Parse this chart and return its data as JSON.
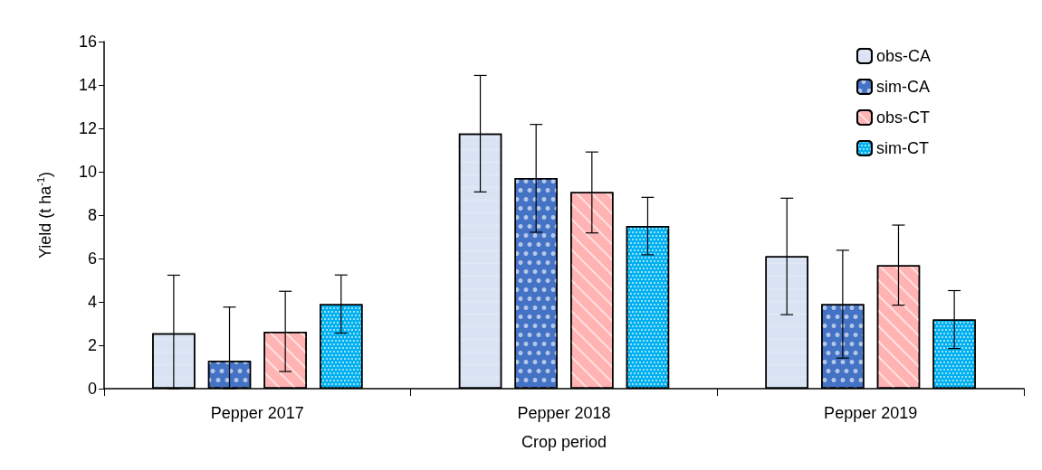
{
  "chart_data": {
    "type": "bar",
    "xlabel": "Crop period",
    "ylabel": "Yield (t ha$^{-1}$)",
    "categories": [
      "Pepper 2017",
      "Pepper 2018",
      "Pepper 2019"
    ],
    "series": [
      {
        "name": "obs-CA",
        "color": "#dae3f3",
        "values": [
          2.55,
          11.76,
          6.1
        ],
        "errors": [
          [
            0,
            5.23
          ],
          [
            9.07,
            14.44
          ],
          [
            3.41,
            8.78
          ]
        ]
      },
      {
        "name": "sim-CA",
        "color": "#4472c4",
        "values": [
          1.28,
          9.71,
          3.9
        ],
        "errors": [
          [
            0,
            3.76
          ],
          [
            7.21,
            12.18
          ],
          [
            1.41,
            6.38
          ]
        ]
      },
      {
        "name": "obs-CT",
        "color": "#ffb3b3",
        "values": [
          2.63,
          9.06,
          5.69
        ],
        "errors": [
          [
            0.79,
            4.49
          ],
          [
            7.18,
            10.91
          ],
          [
            3.85,
            7.54
          ]
        ]
      },
      {
        "name": "sim-CT",
        "color": "#00b0f0",
        "values": [
          3.9,
          7.5,
          3.19
        ],
        "errors": [
          [
            2.56,
            5.24
          ],
          [
            6.17,
            8.82
          ],
          [
            1.85,
            4.52
          ]
        ]
      }
    ],
    "ylim": [
      0,
      16
    ],
    "yticks": [
      0,
      2,
      4,
      6,
      8,
      10,
      12,
      14,
      16
    ],
    "grid": false,
    "legend": "top right"
  }
}
